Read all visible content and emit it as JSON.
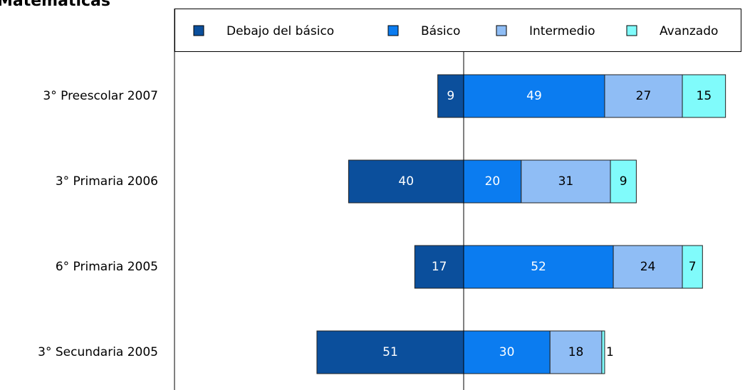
{
  "chart_data": {
    "type": "bar",
    "orientation": "horizontal",
    "title": "Matemáticas",
    "categories": [
      "3° Preescolar 2007",
      "3° Primaria 2006",
      "6° Primaria 2005",
      "3° Secundaria 2005"
    ],
    "series": [
      {
        "name": "Debajo del básico",
        "color": "#0b4f9c",
        "values": [
          9,
          40,
          17,
          51
        ]
      },
      {
        "name": "Básico",
        "color": "#0b7cf0",
        "values": [
          49,
          20,
          52,
          30
        ]
      },
      {
        "name": "Intermedio",
        "color": "#8fbdf5",
        "values": [
          27,
          31,
          24,
          18
        ]
      },
      {
        "name": "Avanzado",
        "color": "#80fbfb",
        "values": [
          15,
          9,
          7,
          1
        ]
      }
    ]
  }
}
